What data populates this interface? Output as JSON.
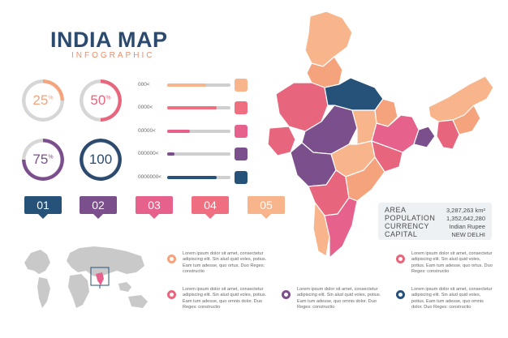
{
  "header": {
    "title": "INDIA MAP",
    "subtitle": "INFOGRAPHIC"
  },
  "rings": [
    {
      "value": 25,
      "label": "25",
      "suffix": "%",
      "color": "#f4a37c"
    },
    {
      "value": 50,
      "label": "50",
      "suffix": "%",
      "color": "#e8667d"
    },
    {
      "value": 75,
      "label": "75",
      "suffix": "%",
      "color": "#7b4e8c"
    },
    {
      "value": 100,
      "label": "100",
      "suffix": "",
      "color": "#2c4a6e"
    }
  ],
  "bars": [
    {
      "label": "000<",
      "fill": 0.62,
      "color": "#f8b48b",
      "swatch": "#f8b48b"
    },
    {
      "label": "0000<",
      "fill": 0.78,
      "color": "#ef6f80",
      "swatch": "#ef6f80"
    },
    {
      "label": "00000<",
      "fill": 0.36,
      "color": "#e6618b",
      "swatch": "#e6618b"
    },
    {
      "label": "000000<",
      "fill": 0.12,
      "color": "#7b4e8c",
      "swatch": "#7b4e8c"
    },
    {
      "label": "0000000<",
      "fill": 0.78,
      "color": "#26527a",
      "swatch": "#26527a"
    }
  ],
  "steps": [
    {
      "label": "01",
      "color": "#26527a"
    },
    {
      "label": "02",
      "color": "#7b4e8c"
    },
    {
      "label": "03",
      "color": "#e6618b"
    },
    {
      "label": "04",
      "color": "#ef6f80"
    },
    {
      "label": "05",
      "color": "#f8b48b"
    }
  ],
  "stats": [
    {
      "label": "AREA",
      "value": "3,287,263 km²"
    },
    {
      "label": "POPULATION",
      "value": "1,352,642,280"
    },
    {
      "label": "CURRENCY",
      "value": "Indian Rupee"
    },
    {
      "label": "CAPITAL",
      "value": "NEW DELHI"
    }
  ],
  "notes": [
    {
      "text": "Lorem ipsum dolor sit amet, consectetur adipiscing elit. Sin alud quid voles, potius. Eam tum adesse, quo ortus. Duo Reges: constructio",
      "color": "#f4a37c"
    },
    {
      "text": "Lorem ipsum dolor sit amet, consectetur adipiscing elit. Sin alud quid voles, potius. Eam tum adesse, quo ortus. Duo Reges: constructio",
      "color": "#e8667d"
    },
    {
      "text": "Lorem ipsum dolor sit amet, consectetur adipiscing elit. Sin alud quid voles, potius. Eam tum adesse, quo omnis dolor. Duo Reges: constructio",
      "color": "#e8667d"
    },
    {
      "text": "Lorem ipsum dolor sit amet, consectetur adipiscing elit. Sin alud quid voles, potius. Eam tum adesse, quo omnis dolor. Duo Reges: constructio",
      "color": "#7b4e8c"
    },
    {
      "text": "Lorem ipsum dolor sit amet, consectetur adipiscing elit. Sin alud quid voles, potius. Eam tum adesse, quo omnis dolor. Duo Reges: constructio",
      "color": "#26527a"
    }
  ]
}
